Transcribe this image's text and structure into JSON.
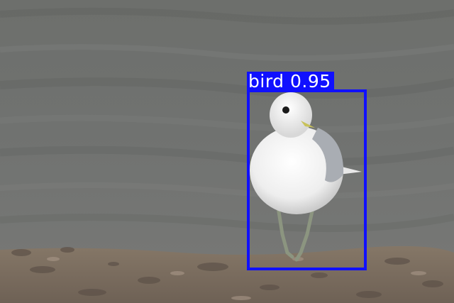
{
  "detections": [
    {
      "label": "bird 0.95",
      "class": "bird",
      "confidence": 0.95
    }
  ],
  "colors": {
    "box": "#1010ff",
    "label_text": "#ffffff",
    "water": "#6f716f",
    "sand": "#7a6c5e"
  }
}
